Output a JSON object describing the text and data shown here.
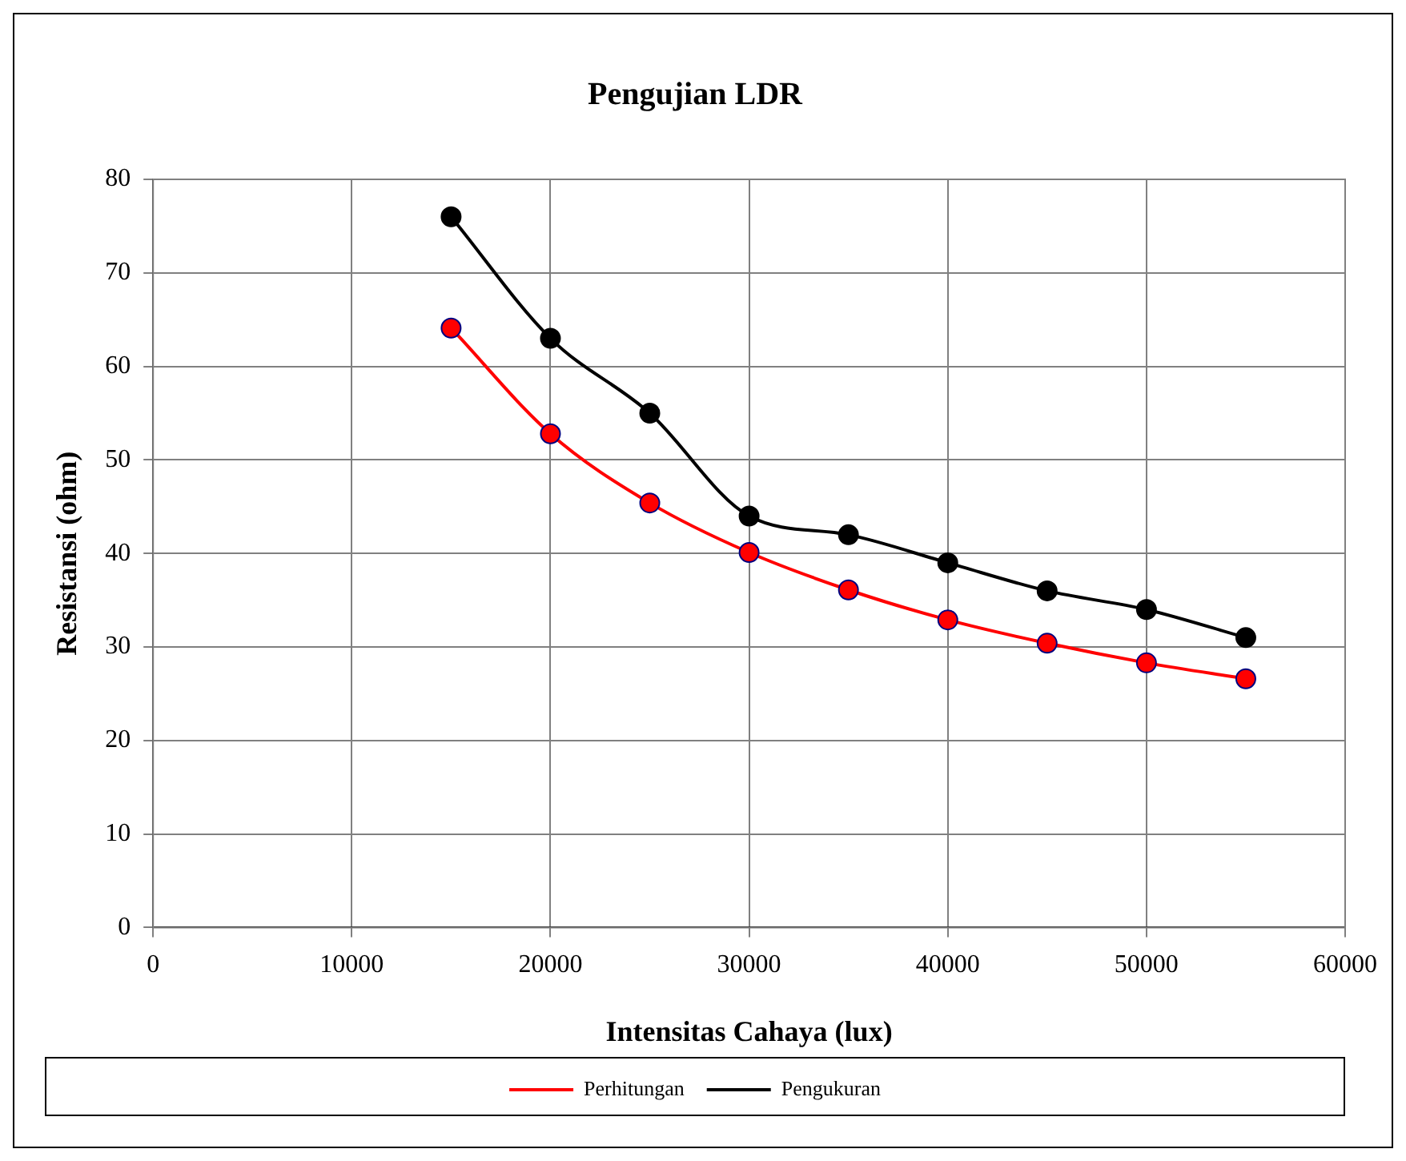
{
  "chart_data": {
    "type": "line",
    "title": "Pengujian LDR",
    "xlabel": "Intensitas Cahaya (lux)",
    "ylabel": "Resistansi (ohm)",
    "x": [
      15000,
      20000,
      25000,
      30000,
      35000,
      40000,
      45000,
      50000,
      55000
    ],
    "series": [
      {
        "name": "Perhitungan",
        "color": "#ff0000",
        "values": [
          64.1,
          52.8,
          45.4,
          40.1,
          36.1,
          32.9,
          30.4,
          28.3,
          26.6
        ]
      },
      {
        "name": "Pengukuran",
        "color": "#000000",
        "values": [
          76,
          63,
          55,
          44,
          42,
          39,
          36,
          34,
          31
        ]
      }
    ],
    "xlim": [
      0,
      60000
    ],
    "xticks": [
      0,
      10000,
      20000,
      30000,
      40000,
      50000,
      60000
    ],
    "ylim": [
      0,
      80
    ],
    "yticks": [
      0,
      10,
      20,
      30,
      40,
      50,
      60,
      70,
      80
    ],
    "grid": true,
    "legend": "bottom",
    "marker": "circle",
    "line_style": "solid"
  }
}
